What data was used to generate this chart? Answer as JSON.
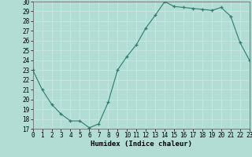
{
  "x": [
    0,
    1,
    2,
    3,
    4,
    5,
    6,
    7,
    8,
    9,
    10,
    11,
    12,
    13,
    14,
    15,
    16,
    17,
    18,
    19,
    20,
    21,
    22,
    23
  ],
  "y": [
    23,
    21,
    19.5,
    18.5,
    17.8,
    17.8,
    17.1,
    17.5,
    19.7,
    23,
    24.4,
    25.6,
    27.3,
    28.6,
    30.0,
    29.5,
    29.4,
    29.3,
    29.2,
    29.1,
    29.4,
    28.5,
    25.8,
    24.0
  ],
  "xlabel": "Humidex (Indice chaleur)",
  "ylim": [
    17,
    30
  ],
  "xlim": [
    0,
    23
  ],
  "yticks": [
    17,
    18,
    19,
    20,
    21,
    22,
    23,
    24,
    25,
    26,
    27,
    28,
    29,
    30
  ],
  "xticks": [
    0,
    1,
    2,
    3,
    4,
    5,
    6,
    7,
    8,
    9,
    10,
    11,
    12,
    13,
    14,
    15,
    16,
    17,
    18,
    19,
    20,
    21,
    22,
    23
  ],
  "line_color": "#2e7d6e",
  "marker": "+",
  "bg_color": "#b2ddd4",
  "grid_color": "#c8e8e0",
  "label_fontsize": 6.5,
  "tick_fontsize": 5.5
}
